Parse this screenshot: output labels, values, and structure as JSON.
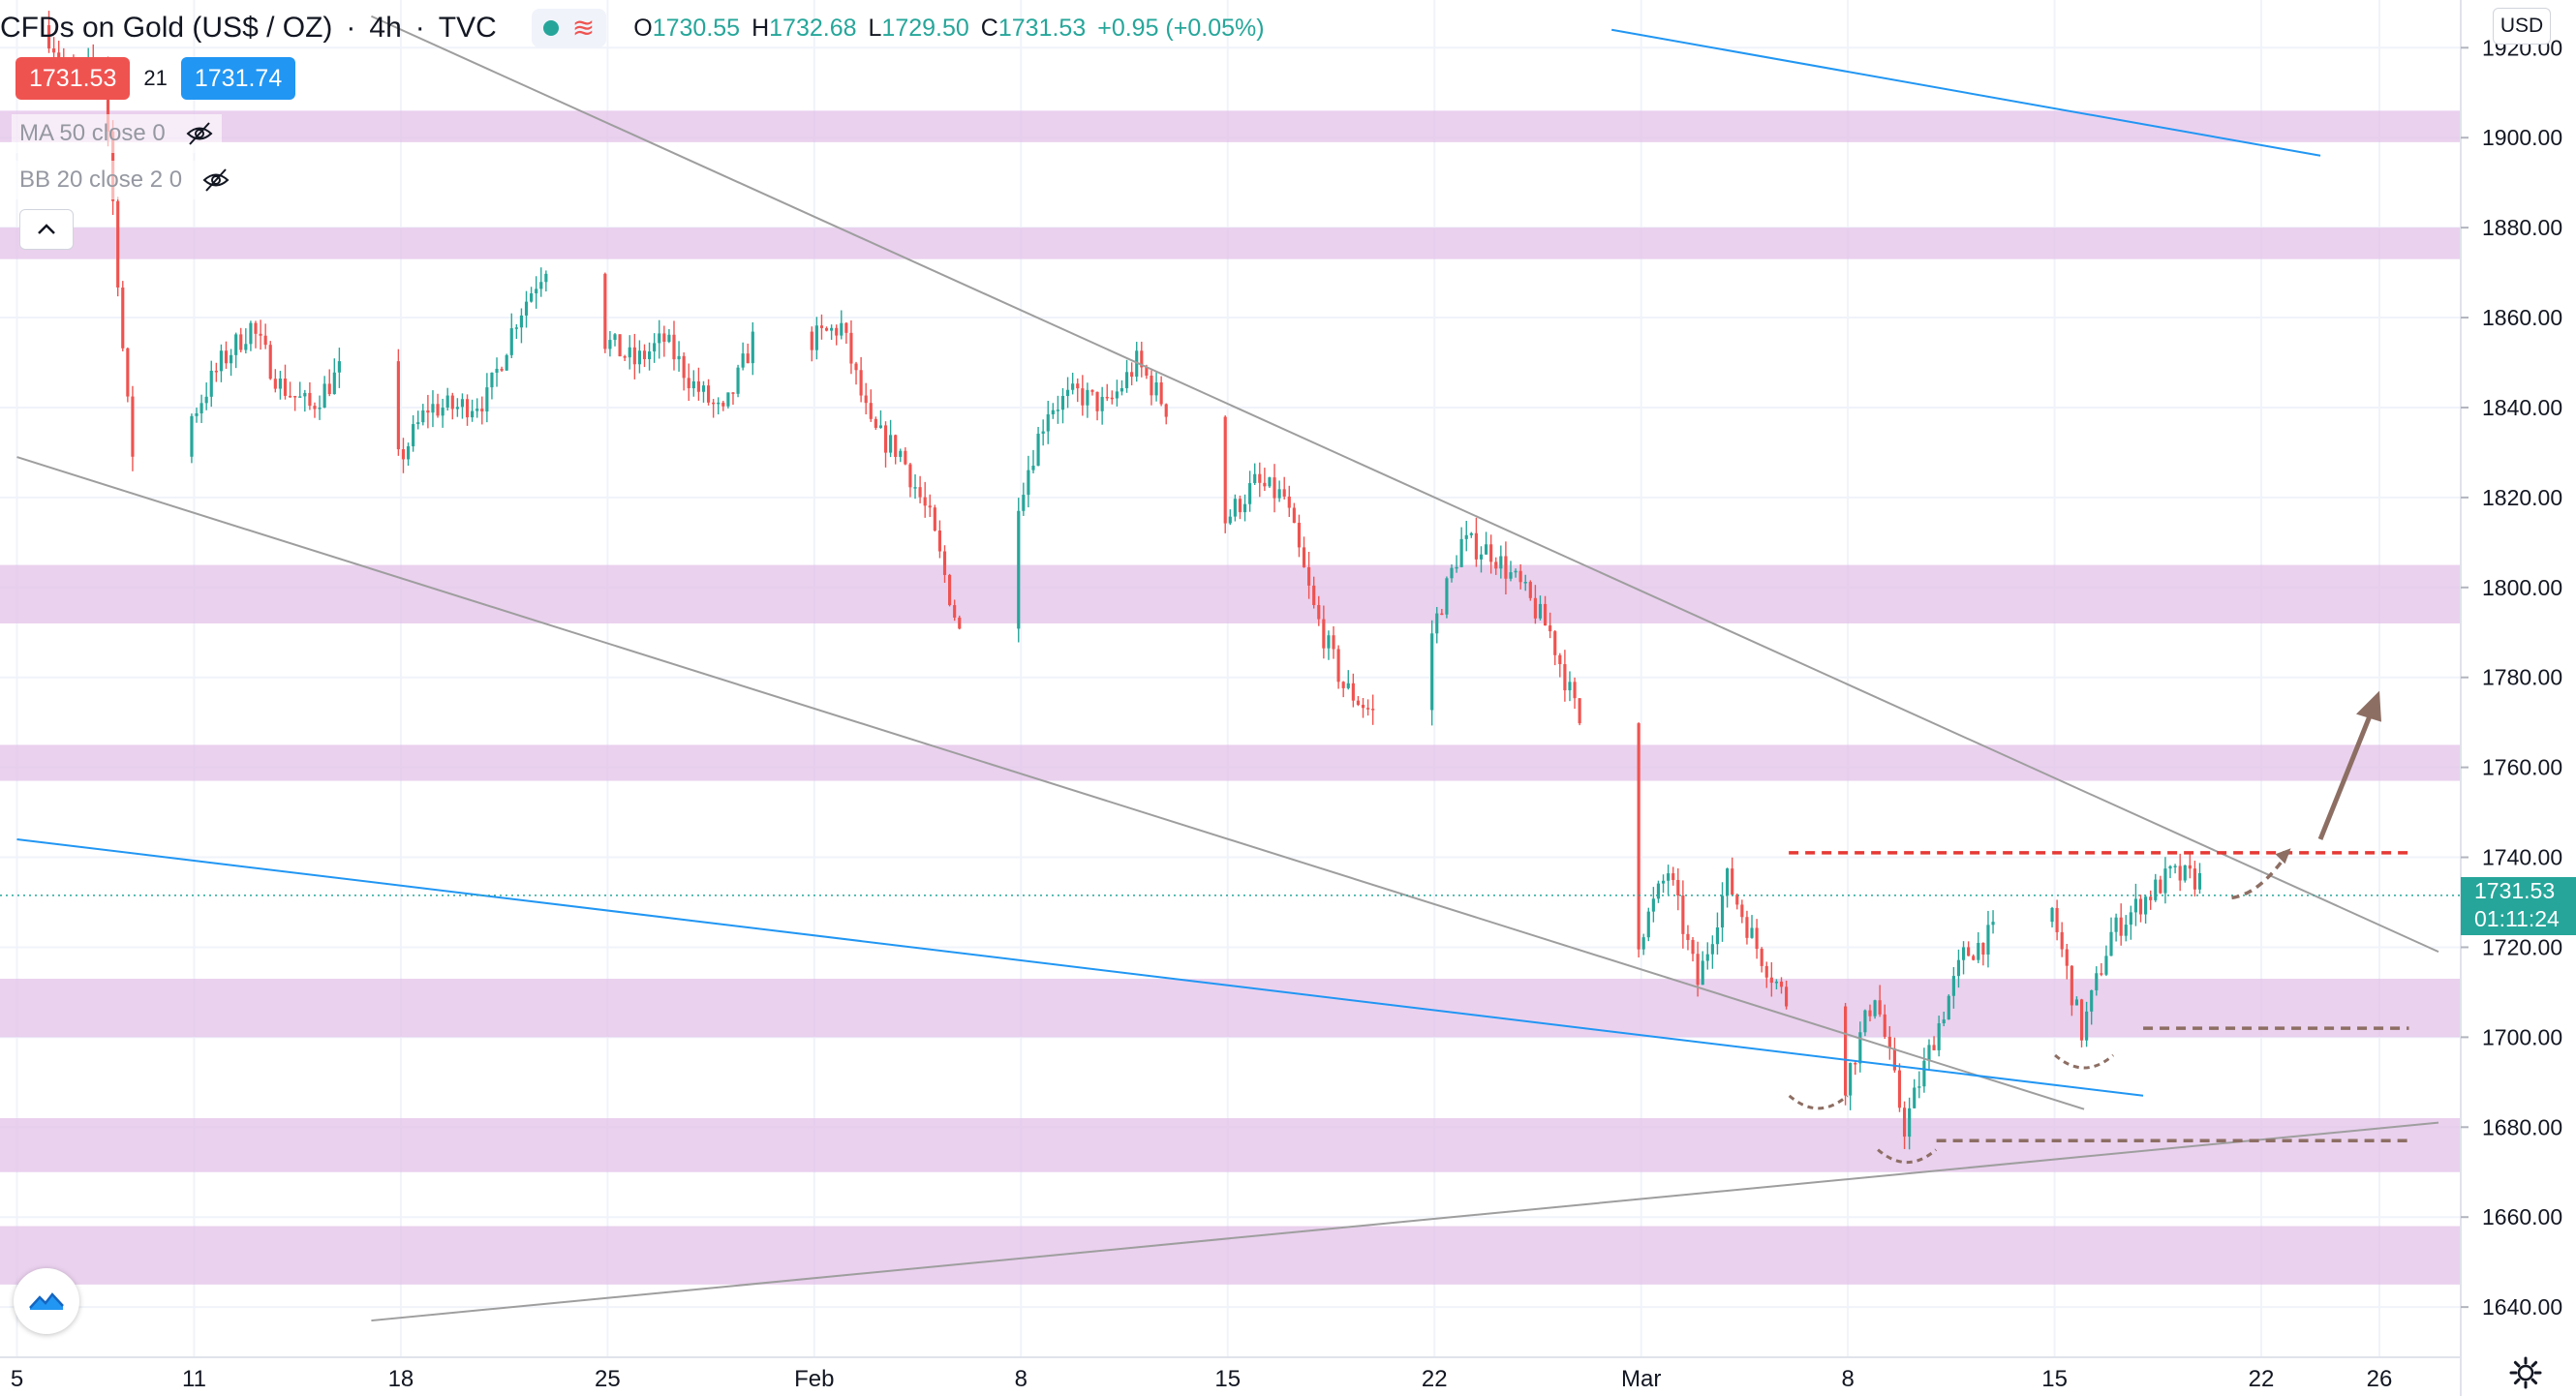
{
  "header": {
    "symbol": "CFDs on Gold (US$ / OZ)",
    "interval": "4h",
    "exchange": "TVC",
    "ohlc": {
      "o_label": "O",
      "o": "1730.55",
      "h_label": "H",
      "h": "1732.68",
      "l_label": "L",
      "l": "1729.50",
      "c_label": "C",
      "c": "1731.53",
      "change": "+0.95 (+0.05%)"
    },
    "bid": "1731.53",
    "spread": "21",
    "ask": "1731.74",
    "collapse_icon": "chevron-up-icon",
    "market_status_icon": "market-open-dot-icon",
    "data_icon": "wave-icon"
  },
  "indicators": [
    {
      "label": "MA 50 close 0",
      "icon": "eye-off-icon"
    },
    {
      "label": "BB 20 close 2 0",
      "icon": "eye-off-icon"
    }
  ],
  "price_scale": {
    "currency": "USD",
    "current_price": "1731.53",
    "countdown": "01:11:24"
  },
  "colors": {
    "up": "#26a69a",
    "down": "#ef5350",
    "zone": "#e1bee7",
    "trend_gray": "#9e9e9e",
    "trend_blue": "#2196f3",
    "resistance": "#e53935",
    "support": "#8d6e63",
    "projection": "#8d6e63"
  },
  "chart_data": {
    "type": "candlestick",
    "title": "CFDs on Gold (US$ / OZ)",
    "interval": "4h",
    "y_axis": {
      "min": 1634,
      "max": 1922,
      "ticks": [
        1640,
        1660,
        1680,
        1700,
        1720,
        1740,
        1760,
        1780,
        1800,
        1820,
        1840,
        1860,
        1880,
        1900,
        1920
      ]
    },
    "y_tick_labels": [
      "1640.00",
      "1660.00",
      "1680.00",
      "1700.00",
      "1720.00",
      "1740.00",
      "1760.00",
      "1780.00",
      "1800.00",
      "1820.00",
      "1840.00",
      "1860.00",
      "1880.00",
      "1900.00",
      "1920.00"
    ],
    "x_axis": {
      "start": "2021-01-05",
      "end": "2021-03-28",
      "ticks": [
        {
          "date": "2021-01-05",
          "label": "5"
        },
        {
          "date": "2021-01-11",
          "label": "11"
        },
        {
          "date": "2021-01-18",
          "label": "18"
        },
        {
          "date": "2021-01-25",
          "label": "25"
        },
        {
          "date": "2021-02-01",
          "label": "Feb"
        },
        {
          "date": "2021-02-08",
          "label": "8"
        },
        {
          "date": "2021-02-15",
          "label": "15"
        },
        {
          "date": "2021-02-22",
          "label": "22"
        },
        {
          "date": "2021-03-01",
          "label": "Mar"
        },
        {
          "date": "2021-03-08",
          "label": "8"
        },
        {
          "date": "2021-03-15",
          "label": "15"
        },
        {
          "date": "2021-03-22",
          "label": "22"
        },
        {
          "date": "2021-03-26",
          "label": "26"
        }
      ]
    },
    "price_path": [
      [
        "2021-01-06",
        1925
      ],
      [
        "2021-01-07",
        1912
      ],
      [
        "2021-01-08",
        1918
      ],
      [
        "2021-01-08 18:00",
        1845
      ],
      [
        "2021-01-09",
        1830
      ],
      [
        "2021-01-11",
        1838
      ],
      [
        "2021-01-12",
        1850
      ],
      [
        "2021-01-13",
        1858
      ],
      [
        "2021-01-14",
        1845
      ],
      [
        "2021-01-15",
        1840
      ],
      [
        "2021-01-16",
        1848
      ],
      [
        "2021-01-17",
        1830
      ],
      [
        "2021-01-18",
        1828
      ],
      [
        "2021-01-19",
        1840
      ],
      [
        "2021-01-20",
        1840
      ],
      [
        "2021-01-21",
        1842
      ],
      [
        "2021-01-22",
        1860
      ],
      [
        "2021-01-23",
        1872
      ],
      [
        "2021-01-24",
        1860
      ],
      [
        "2021-01-25",
        1855
      ],
      [
        "2021-01-26",
        1850
      ],
      [
        "2021-01-27",
        1855
      ],
      [
        "2021-01-28",
        1845
      ],
      [
        "2021-01-29",
        1838
      ],
      [
        "2021-01-30",
        1855
      ],
      [
        "2021-01-31",
        1870
      ],
      [
        "2021-02-01",
        1855
      ],
      [
        "2021-02-02",
        1858
      ],
      [
        "2021-02-03",
        1835
      ],
      [
        "2021-02-04",
        1830
      ],
      [
        "2021-02-05",
        1815
      ],
      [
        "2021-02-06",
        1790
      ],
      [
        "2021-02-07",
        1805
      ],
      [
        "2021-02-08",
        1820
      ],
      [
        "2021-02-09",
        1840
      ],
      [
        "2021-02-10",
        1843
      ],
      [
        "2021-02-11",
        1840
      ],
      [
        "2021-02-12",
        1850
      ],
      [
        "2021-02-13",
        1840
      ],
      [
        "2021-02-14",
        1820
      ],
      [
        "2021-02-15",
        1815
      ],
      [
        "2021-02-16",
        1823
      ],
      [
        "2021-02-17",
        1820
      ],
      [
        "2021-02-18",
        1795
      ],
      [
        "2021-02-19",
        1778
      ],
      [
        "2021-02-20",
        1772
      ],
      [
        "2021-02-21",
        1768
      ],
      [
        "2021-02-22",
        1790
      ],
      [
        "2021-02-23",
        1810
      ],
      [
        "2021-02-24",
        1808
      ],
      [
        "2021-02-25",
        1800
      ],
      [
        "2021-02-26",
        1790
      ],
      [
        "2021-02-27",
        1770
      ],
      [
        "2021-02-28",
        1752
      ],
      [
        "2021-03-01",
        1722
      ],
      [
        "2021-03-02",
        1737
      ],
      [
        "2021-03-03",
        1712
      ],
      [
        "2021-03-04",
        1735
      ],
      [
        "2021-03-05",
        1720
      ],
      [
        "2021-03-06",
        1708
      ],
      [
        "2021-03-07",
        1700
      ],
      [
        "2021-03-08",
        1690
      ],
      [
        "2021-03-09",
        1710
      ],
      [
        "2021-03-10",
        1680
      ],
      [
        "2021-03-11",
        1700
      ],
      [
        "2021-03-12",
        1718
      ],
      [
        "2021-03-13",
        1723
      ],
      [
        "2021-03-14",
        1736
      ],
      [
        "2021-03-15",
        1728
      ],
      [
        "2021-03-16",
        1701
      ],
      [
        "2021-03-17",
        1723
      ],
      [
        "2021-03-18",
        1730
      ],
      [
        "2021-03-19",
        1736
      ],
      [
        "2021-03-20",
        1735
      ],
      [
        "2021-03-21",
        1731.53
      ]
    ],
    "zones": [
      [
        1899,
        1906
      ],
      [
        1873,
        1880
      ],
      [
        1792,
        1805
      ],
      [
        1757,
        1765
      ],
      [
        1700,
        1713
      ],
      [
        1670,
        1682
      ],
      [
        1645,
        1658
      ]
    ],
    "trend_lines": [
      {
        "color": "gray",
        "from": [
          "2021-01-17",
          1927
        ],
        "to": [
          "2021-03-28",
          1719
        ]
      },
      {
        "color": "gray",
        "from": [
          "2021-01-05",
          1829
        ],
        "to": [
          "2021-03-16",
          1684
        ]
      },
      {
        "color": "gray",
        "from": [
          "2021-01-17",
          1637
        ],
        "to": [
          "2021-03-28",
          1681
        ]
      },
      {
        "color": "blue",
        "from": [
          "2021-01-05",
          1744
        ],
        "to": [
          "2021-03-18",
          1687
        ]
      },
      {
        "color": "blue",
        "from": [
          "2021-02-28",
          1924
        ],
        "to": [
          "2021-03-24",
          1896
        ]
      }
    ],
    "levels": [
      {
        "color": "red",
        "value": 1741,
        "from": "2021-03-06",
        "to": "2021-03-27",
        "style": "dashed"
      },
      {
        "color": "brown",
        "value": 1702,
        "from": "2021-03-18",
        "to": "2021-03-27",
        "style": "dashed"
      },
      {
        "color": "brown",
        "value": 1677,
        "from": "2021-03-11",
        "to": "2021-03-27",
        "style": "dashed"
      }
    ],
    "projection": {
      "from": [
        "2021-03-21",
        1731
      ],
      "to": [
        "2021-03-23",
        1742
      ]
    },
    "target_arrow": {
      "from": [
        "2021-03-24",
        1744
      ],
      "to": [
        "2021-03-26",
        1777
      ]
    }
  }
}
